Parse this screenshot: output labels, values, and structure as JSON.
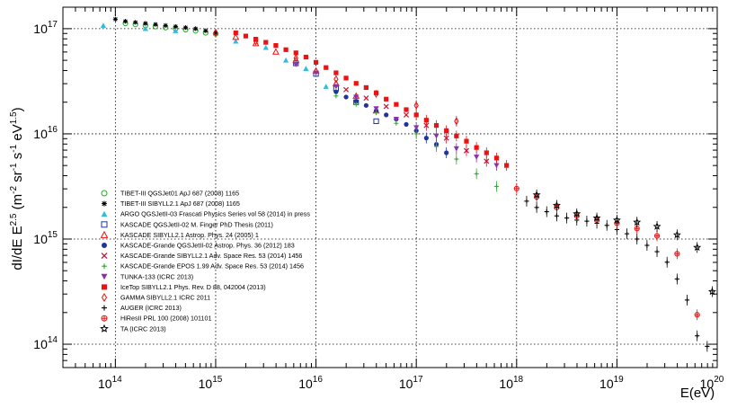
{
  "chart_data": {
    "type": "scatter",
    "title": "",
    "xlabel": "E(eV)",
    "ylabel": {
      "main": "dI/dE E",
      "exp1": "2.5",
      "unit_open": " (m",
      "exp2": "-2",
      "mid1": " sr",
      "exp3": "-1",
      "mid2": " s",
      "exp4": "-1",
      "mid3": " eV",
      "exp5": "1.5",
      "unit_close": ")"
    },
    "x_scale": "log",
    "y_scale": "log",
    "xlim": [
      30000000000000.0,
      1e+20
    ],
    "ylim": [
      60000000000000.0,
      1.6e+17
    ],
    "x_ticks": [
      {
        "base": "10",
        "exp": "14"
      },
      {
        "base": "10",
        "exp": "15"
      },
      {
        "base": "10",
        "exp": "16"
      },
      {
        "base": "10",
        "exp": "17"
      },
      {
        "base": "10",
        "exp": "18"
      },
      {
        "base": "10",
        "exp": "19"
      },
      {
        "base": "10",
        "exp": "20"
      }
    ],
    "y_ticks": [
      {
        "base": "10",
        "exp": "14"
      },
      {
        "base": "10",
        "exp": "15"
      },
      {
        "base": "10",
        "exp": "16"
      },
      {
        "base": "10",
        "exp": "17"
      }
    ],
    "grid": "dotted",
    "legend_position": "bottom-left",
    "series": [
      {
        "name": "TIBET-III QGSJet01 ApJ 687 (2008) 1165",
        "marker": "circle-open",
        "color": "#22aa22",
        "x": [
          14.1,
          14.2,
          14.3,
          14.4,
          14.5,
          14.6,
          14.7,
          14.8,
          14.9,
          15.0
        ],
        "y": [
          17.05,
          17.04,
          17.03,
          17.02,
          17.01,
          17.0,
          16.99,
          16.98,
          16.96,
          16.95
        ]
      },
      {
        "name": "TIBET-III SIBYLL2.1 ApJ 687 (2008) 1165",
        "marker": "asterisk",
        "color": "#000000",
        "x": [
          14.0,
          14.1,
          14.2,
          14.3,
          14.4,
          14.5,
          14.6,
          14.7,
          14.8,
          14.9,
          15.0
        ],
        "y": [
          17.09,
          17.07,
          17.06,
          17.05,
          17.04,
          17.03,
          17.02,
          17.01,
          17.0,
          16.98,
          16.96
        ]
      },
      {
        "name": "ARGO QGSJetII-03 Frascati Physics Series vol 58 (2014) in press",
        "marker": "triangle-up",
        "color": "#33bbdd",
        "x": [
          13.88,
          14.3,
          14.6,
          15.2,
          15.5,
          15.7,
          15.9,
          16.1
        ],
        "y": [
          17.03,
          17.0,
          16.98,
          16.88,
          16.82,
          16.7,
          16.62,
          16.45
        ]
      },
      {
        "name": "KASCADE QGSJetII-02 M. Finger PhD Thesis (2011)",
        "marker": "square-open",
        "color": "#223399",
        "x": [
          15.8,
          16.0,
          16.2,
          16.4,
          16.6
        ],
        "y": [
          16.67,
          16.57,
          16.43,
          16.3,
          16.12
        ]
      },
      {
        "name": "KASCADE SIBYLL2.1 Astrop. Phys. 24 (2005) 1",
        "marker": "triangle-open",
        "color": "#ee1111",
        "x": [
          15.2,
          15.4,
          15.6,
          15.8,
          16.0,
          16.2,
          16.4,
          16.6
        ],
        "y": [
          16.92,
          16.86,
          16.78,
          16.7,
          16.6,
          16.48,
          16.36,
          16.22
        ]
      },
      {
        "name": "KASCADE-Grande QGSJetII-02 Astrop. Phys. 36 (2012) 183",
        "marker": "circle-filled",
        "color": "#223399",
        "x": [
          16.2,
          16.3,
          16.4,
          16.5,
          16.6,
          16.7,
          16.8,
          16.9,
          17.0,
          17.1,
          17.2,
          17.3
        ],
        "y": [
          16.4,
          16.35,
          16.31,
          16.27,
          16.22,
          16.18,
          16.14,
          16.09,
          16.03,
          15.96,
          15.9,
          15.82
        ]
      },
      {
        "name": "KASCADE-Grande SIBYLL2.1 Adv. Space Res. 53 (2014) 1456",
        "marker": "cross",
        "color": "#cc1133",
        "x": [
          16.3,
          16.5,
          16.7,
          16.9,
          17.1,
          17.3,
          17.5,
          17.7
        ],
        "y": [
          16.42,
          16.34,
          16.26,
          16.18,
          16.08,
          15.96,
          15.84,
          15.74
        ]
      },
      {
        "name": "KASCADE-Grande EPOS 1.99 Adv. Space Res. 53 (2014) 1456",
        "marker": "star-small",
        "color": "#33aa33",
        "x": [
          16.2,
          16.4,
          16.6,
          16.8,
          17.0,
          17.2,
          17.4,
          17.6,
          17.8
        ],
        "y": [
          16.36,
          16.28,
          16.2,
          16.1,
          16.0,
          15.88,
          15.76,
          15.62,
          15.5
        ]
      },
      {
        "name": "TUNKA-133 (ICRC 2013)",
        "marker": "triangle-down",
        "color": "#8833aa",
        "x": [
          15.8,
          16.0,
          16.2,
          16.4,
          16.6,
          16.8,
          17.0,
          17.2,
          17.4,
          17.6,
          17.8
        ],
        "y": [
          16.66,
          16.58,
          16.45,
          16.35,
          16.24,
          16.14,
          16.06,
          15.98,
          15.86,
          15.78,
          15.7
        ]
      },
      {
        "name": "IceTop SIBYLL2.1 Phys. Rev. D 88, 042004 (2013)",
        "marker": "square-filled",
        "color": "#ee1111",
        "x": [
          15.2,
          15.3,
          15.4,
          15.5,
          15.6,
          15.7,
          15.8,
          15.9,
          16.0,
          16.1,
          16.2,
          16.3,
          16.4,
          16.5,
          16.6,
          16.7,
          16.8,
          16.9,
          17.0,
          17.1,
          17.2,
          17.3,
          17.4,
          17.5,
          17.6,
          17.7,
          17.8,
          17.9
        ],
        "y": [
          16.96,
          16.93,
          16.9,
          16.87,
          16.84,
          16.8,
          16.77,
          16.73,
          16.68,
          16.63,
          16.58,
          16.53,
          16.48,
          16.44,
          16.39,
          16.33,
          16.28,
          16.23,
          16.18,
          16.13,
          16.08,
          16.03,
          15.98,
          15.93,
          15.87,
          15.82,
          15.77,
          15.7
        ]
      },
      {
        "name": "GAMMA SIBYLL2.1 ICRC 2011",
        "marker": "diamond-open",
        "color": "#ee1111",
        "x": [
          15.0,
          15.4,
          15.8,
          16.2,
          16.6,
          17.0,
          17.4
        ],
        "y": [
          16.96,
          16.88,
          16.72,
          16.52,
          16.38,
          16.27,
          16.12
        ]
      },
      {
        "name": "AUGER (ICRC 2013)",
        "marker": "plus",
        "color": "#000000",
        "x": [
          18.1,
          18.2,
          18.3,
          18.4,
          18.5,
          18.6,
          18.7,
          18.8,
          18.9,
          19.0,
          19.1,
          19.2,
          19.3,
          19.4,
          19.5,
          19.6,
          19.7,
          19.8,
          19.9
        ],
        "y": [
          15.36,
          15.3,
          15.26,
          15.22,
          15.2,
          15.18,
          15.17,
          15.15,
          15.13,
          15.09,
          15.05,
          15.0,
          14.94,
          14.88,
          14.78,
          14.62,
          14.42,
          14.08,
          13.98
        ]
      },
      {
        "name": "HiResII PRL 100 (2008) 101101",
        "marker": "cross-circle",
        "color": "#ee1111",
        "x": [
          18.0,
          18.2,
          18.4,
          18.6,
          18.8,
          19.0,
          19.2,
          19.4,
          19.6,
          19.8
        ],
        "y": [
          15.48,
          15.4,
          15.3,
          15.22,
          15.18,
          15.15,
          15.1,
          15.03,
          14.86,
          14.28
        ]
      },
      {
        "name": "TA (ICRC 2013)",
        "marker": "star-open",
        "color": "#000000",
        "x": [
          18.2,
          18.4,
          18.6,
          18.8,
          19.0,
          19.2,
          19.4,
          19.6,
          19.8,
          19.95
        ],
        "y": [
          15.42,
          15.32,
          15.24,
          15.2,
          15.18,
          15.16,
          15.12,
          15.04,
          14.92,
          14.5
        ]
      }
    ]
  }
}
